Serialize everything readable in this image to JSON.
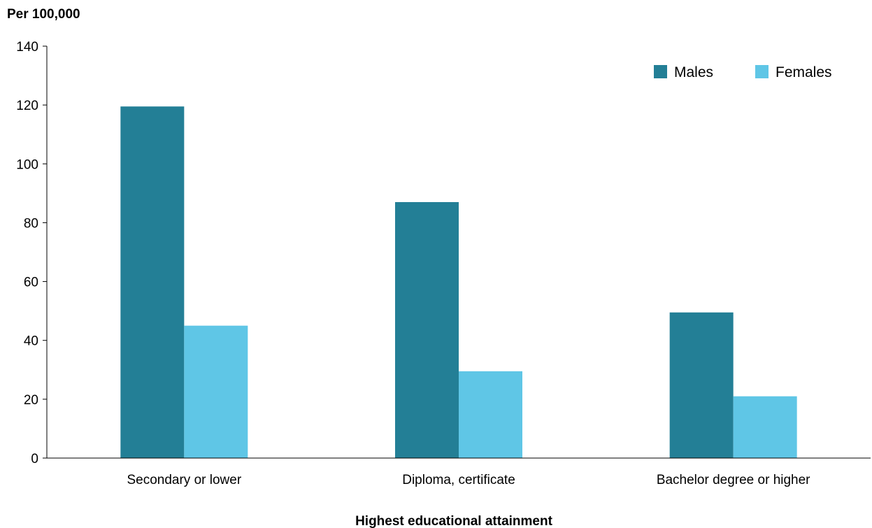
{
  "chart_data": {
    "type": "bar",
    "title": "",
    "ylabel": "Per 100,000",
    "xlabel": "Highest educational attainment",
    "categories": [
      "Secondary or lower",
      "Diploma, certificate",
      "Bachelor degree or higher"
    ],
    "series": [
      {
        "name": "Males",
        "color": "#237F96",
        "values": [
          119.5,
          87,
          49.5
        ]
      },
      {
        "name": "Females",
        "color": "#5FC6E6",
        "values": [
          45,
          29.5,
          21
        ]
      }
    ],
    "ylim": [
      0,
      140
    ],
    "yticks": [
      0,
      20,
      40,
      60,
      80,
      100,
      120,
      140
    ],
    "grid": false,
    "legend_position": "top-right"
  }
}
